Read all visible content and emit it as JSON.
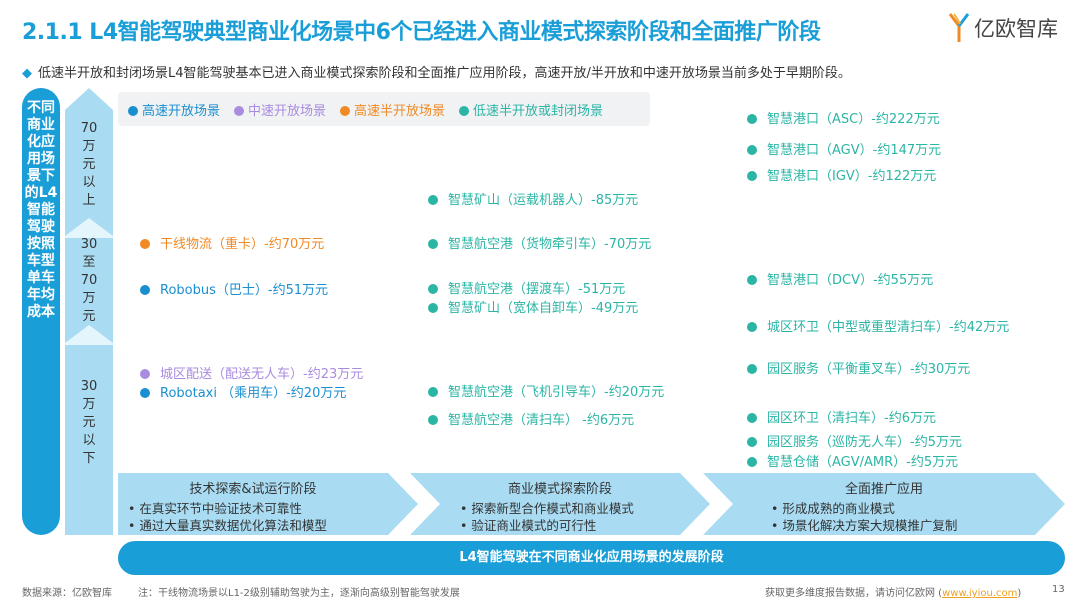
{
  "header": {
    "title": "2.1.1 L4智能驾驶典型商业化场景中6个已经进入商业模式探索阶段和全面推广阶段",
    "logo": "亿欧智库"
  },
  "summary": "低速半开放和封闭场景L4智能驾驶基本已进入商业模式探索阶段和全面推广应用阶段，高速开放/半开放和中速开放场景当前多处于早期阶段。",
  "colors": {
    "accent": "#1a9ed8",
    "high_speed_open": "#1a8fd0",
    "mid_speed_open": "#a98be0",
    "high_speed_semi": "#f08a24",
    "low_speed": "#2bb5a5"
  },
  "yaxis": {
    "label": "不同商业化应用场景下的L4智能驾驶按照车型单车年均成本",
    "tiers": [
      "70万元以上",
      "30至70万元",
      "30万元以下"
    ]
  },
  "legend": [
    {
      "label": "高速开放场景",
      "color": "#1a8fd0"
    },
    {
      "label": "中速开放场景",
      "color": "#a98be0"
    },
    {
      "label": "高速半开放场景",
      "color": "#f08a24"
    },
    {
      "label": "低速半开放或封闭场景",
      "color": "#2bb5a5"
    }
  ],
  "col1": [
    {
      "text": "干线物流（重卡）-约70万元",
      "color": "#f08a24"
    },
    {
      "text": "Robobus（巴士）-约51万元",
      "color": "#1a8fd0"
    },
    {
      "text": "城区配送（配送无人车）-约23万元",
      "color": "#a98be0"
    },
    {
      "text": "Robotaxi （乘用车）-约20万元",
      "color": "#1a8fd0"
    }
  ],
  "col2": [
    {
      "text": "智慧矿山（运载机器人）-85万元"
    },
    {
      "text": "智慧航空港（货物牵引车）-70万元"
    },
    {
      "text": "智慧航空港（摆渡车）-51万元"
    },
    {
      "text": "智慧矿山（宽体自卸车）-49万元"
    },
    {
      "text": "智慧航空港（飞机引导车）-约20万元"
    },
    {
      "text": "智慧航空港（清扫车） -约6万元"
    }
  ],
  "col3": [
    {
      "text": "智慧港口（ASC）-约222万元"
    },
    {
      "text": "智慧港口（AGV）-约147万元"
    },
    {
      "text": "智慧港口（IGV）-约122万元"
    },
    {
      "text": "智慧港口（DCV）-约55万元"
    },
    {
      "text": "城区环卫（中型或重型清扫车）-约42万元"
    },
    {
      "text": "园区服务（平衡重叉车）-约30万元"
    },
    {
      "text": "园区环卫（清扫车）-约6万元"
    },
    {
      "text": "园区服务（巡防无人车）-约5万元"
    },
    {
      "text": "智慧仓储（AGV/AMR）-约5万元"
    }
  ],
  "stages": [
    {
      "title": "技术探索&试运行阶段",
      "points": [
        "在真实环节中验证技术可靠性",
        "通过大量真实数据优化算法和模型"
      ]
    },
    {
      "title": "商业模式探索阶段",
      "points": [
        "探索新型合作模式和商业模式",
        "验证商业模式的可行性"
      ]
    },
    {
      "title": "全面推广应用",
      "points": [
        "形成成熟的商业模式",
        "场景化解决方案大规模推广复制"
      ]
    }
  ],
  "bottom_bar": "L4智能驾驶在不同商业化应用场景的发展阶段",
  "footer": {
    "source": "数据来源：亿欧智库",
    "note": "注：干线物流场景以L1-2级别辅助驾驶为主，逐渐向高级别智能驾驶发展",
    "more": "获取更多维度报告数据，请访问亿欧网 (",
    "link": "www.iyiou.com",
    "close": ")",
    "page": "13"
  }
}
